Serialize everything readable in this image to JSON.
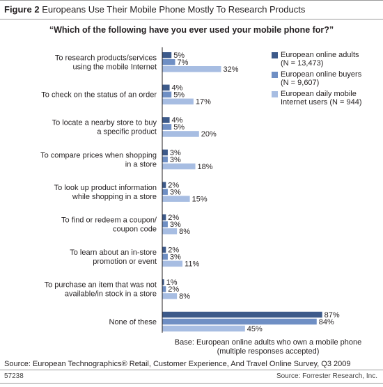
{
  "header": {
    "figure_label": "Figure 2",
    "title": "Europeans Use Their Mobile Phone Mostly To Research Products"
  },
  "chart_data": {
    "type": "bar",
    "title": "“Which of the following have you ever used your mobile phone for?”",
    "categories": [
      [
        "To research products/services",
        "using the mobile Internet"
      ],
      [
        "To check on the status of an order"
      ],
      [
        "To locate a nearby store to buy",
        "a specific product"
      ],
      [
        "To compare prices when shopping",
        "in a store"
      ],
      [
        "To look up product information",
        "while shopping in a store"
      ],
      [
        "To find or redeem a coupon/",
        "coupon code"
      ],
      [
        "To learn about an in-store",
        "promotion or event"
      ],
      [
        "To purchase an item that was not",
        "available/in stock in a store"
      ],
      [
        "None of these"
      ]
    ],
    "series": [
      {
        "name": "European online adults",
        "n": "(N = 13,473)",
        "color": "#3d5a8a",
        "values": [
          5,
          4,
          4,
          3,
          2,
          2,
          2,
          1,
          87
        ]
      },
      {
        "name": "European online buyers",
        "n": "(N = 9,607)",
        "color": "#6f8fc4",
        "values": [
          7,
          5,
          5,
          3,
          3,
          3,
          3,
          2,
          84
        ]
      },
      {
        "name": "European daily mobile Internet users",
        "n": "(N = 944)",
        "color": "#a7bde2",
        "values": [
          32,
          17,
          20,
          18,
          15,
          8,
          11,
          8,
          45
        ]
      }
    ],
    "value_suffix": "%",
    "legend_position": "top-right",
    "orientation": "horizontal"
  },
  "notes": {
    "base_line1": "Base: European online adults who own a mobile phone",
    "base_line2": "(multiple responses accepted)",
    "source": "Source: European Technographics® Retail, Customer Experience, And Travel Online Survey, Q3 2009"
  },
  "footer": {
    "id": "57238",
    "source": "Source: Forrester Research, Inc."
  }
}
